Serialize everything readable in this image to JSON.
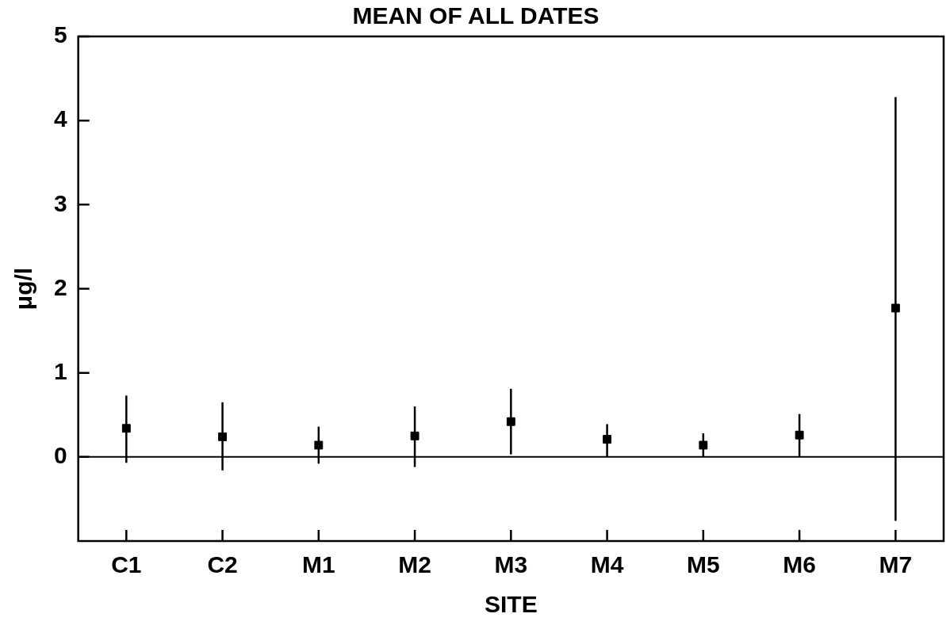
{
  "chart_data": {
    "type": "scatter",
    "title": "MEAN OF ALL DATES",
    "xlabel": "SITE",
    "ylabel": "μg/l",
    "categories": [
      "C1",
      "C2",
      "M1",
      "M2",
      "M3",
      "M4",
      "M5",
      "M6",
      "M7"
    ],
    "series": [
      {
        "color": "#000000",
        "values": [
          0.34,
          0.24,
          0.14,
          0.25,
          0.42,
          0.21,
          0.14,
          0.26,
          1.77
        ],
        "errors": [
          [
            -0.07,
            0.73
          ],
          [
            -0.16,
            0.65
          ],
          [
            -0.08,
            0.36
          ],
          [
            -0.12,
            0.6
          ],
          [
            0.03,
            0.81
          ],
          [
            0,
            0.39
          ],
          [
            0,
            0.28
          ],
          [
            0,
            0.51
          ],
          [
            -0.76,
            4.28
          ]
        ]
      }
    ],
    "marker": "square",
    "ylim": [
      -1,
      5
    ],
    "yticks": [
      0,
      1,
      2,
      3,
      4,
      5
    ],
    "grid": false,
    "legend": false,
    "ref_lines": [
      {
        "axis": "y",
        "value": 0,
        "color": "#000000"
      }
    ]
  }
}
